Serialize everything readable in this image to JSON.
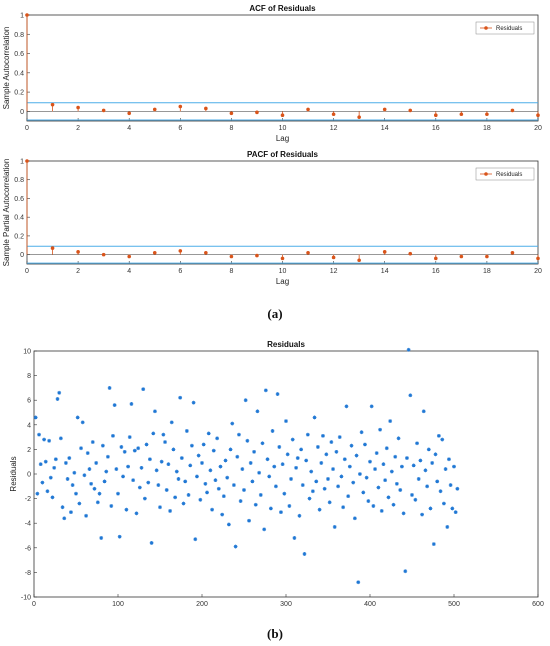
{
  "captions": {
    "a": "(a)",
    "b": "(b)"
  },
  "colors": {
    "stem": "#d9541a",
    "bound": "#4daee8",
    "scatter": "#1f77d4",
    "axis": "#333333"
  },
  "chart_data": [
    {
      "type": "stem",
      "title": "ACF of Residuals",
      "xlabel": "Lag",
      "ylabel": "Sample Autocorrelation",
      "legend": {
        "label": "Residuals",
        "placement": "top-right"
      },
      "xlim": [
        0,
        20
      ],
      "ylim": [
        -0.1,
        1
      ],
      "xticks": [
        0,
        2,
        4,
        6,
        8,
        10,
        12,
        14,
        16,
        18,
        20
      ],
      "yticks": [
        0,
        0.2,
        0.4,
        0.6,
        0.8,
        1
      ],
      "ytick_labels": [
        "0",
        "0.2",
        "0.4",
        "0.6",
        "0.8",
        "1"
      ],
      "confidence_bound": 0.09,
      "lags": [
        0,
        1,
        2,
        3,
        4,
        5,
        6,
        7,
        8,
        9,
        10,
        11,
        12,
        13,
        14,
        15,
        16,
        17,
        18,
        19,
        20
      ],
      "values": [
        1,
        0.07,
        0.04,
        0.01,
        -0.02,
        0.02,
        0.05,
        0.03,
        -0.02,
        -0.01,
        -0.04,
        0.02,
        -0.03,
        -0.06,
        0.02,
        0.01,
        -0.04,
        -0.03,
        -0.03,
        0.01,
        -0.04
      ]
    },
    {
      "type": "stem",
      "title": "PACF of Residuals",
      "xlabel": "Lag",
      "ylabel": "Sample Partial Autocorrelation",
      "legend": {
        "label": "Residuals",
        "placement": "top-right"
      },
      "xlim": [
        0,
        20
      ],
      "ylim": [
        -0.1,
        1
      ],
      "xticks": [
        0,
        2,
        4,
        6,
        8,
        10,
        12,
        14,
        16,
        18,
        20
      ],
      "yticks": [
        0,
        0.2,
        0.4,
        0.6,
        0.8,
        1
      ],
      "ytick_labels": [
        "0",
        "0.2",
        "0.4",
        "0.6",
        "0.8",
        "1"
      ],
      "confidence_bound": 0.09,
      "lags": [
        0,
        1,
        2,
        3,
        4,
        5,
        6,
        7,
        8,
        9,
        10,
        11,
        12,
        13,
        14,
        15,
        16,
        17,
        18,
        19,
        20
      ],
      "values": [
        1,
        0.07,
        0.03,
        0.0,
        -0.02,
        0.02,
        0.04,
        0.02,
        -0.02,
        -0.01,
        -0.04,
        0.02,
        -0.03,
        -0.06,
        0.03,
        0.01,
        -0.04,
        -0.02,
        -0.02,
        0.02,
        -0.04
      ]
    },
    {
      "type": "scatter",
      "title": "Residuals",
      "xlabel": "",
      "ylabel": "Residuals",
      "xlim": [
        0,
        600
      ],
      "ylim": [
        -10,
        10
      ],
      "xticks": [
        0,
        100,
        200,
        300,
        400,
        500,
        600
      ],
      "yticks": [
        -10,
        -8,
        -6,
        -4,
        -2,
        0,
        2,
        4,
        6,
        8,
        10
      ],
      "marker": "star",
      "points": [
        [
          2,
          4.6
        ],
        [
          4,
          -1.6
        ],
        [
          6,
          3.2
        ],
        [
          8,
          0.8
        ],
        [
          10,
          -0.7
        ],
        [
          12,
          2.8
        ],
        [
          14,
          1.0
        ],
        [
          16,
          -1.4
        ],
        [
          18,
          2.7
        ],
        [
          20,
          -0.3
        ],
        [
          22,
          -1.9
        ],
        [
          24,
          0.5
        ],
        [
          26,
          1.2
        ],
        [
          28,
          6.1
        ],
        [
          30,
          6.6
        ],
        [
          32,
          2.9
        ],
        [
          34,
          -2.7
        ],
        [
          36,
          -3.6
        ],
        [
          38,
          0.9
        ],
        [
          40,
          -0.4
        ],
        [
          42,
          1.3
        ],
        [
          44,
          -3.1
        ],
        [
          46,
          -0.9
        ],
        [
          48,
          0.1
        ],
        [
          50,
          -1.6
        ],
        [
          52,
          4.6
        ],
        [
          54,
          -2.4
        ],
        [
          56,
          2.1
        ],
        [
          58,
          4.2
        ],
        [
          60,
          -0.1
        ],
        [
          62,
          -3.4
        ],
        [
          64,
          1.7
        ],
        [
          66,
          0.4
        ],
        [
          68,
          -0.8
        ],
        [
          70,
          2.6
        ],
        [
          72,
          -1.2
        ],
        [
          74,
          0.9
        ],
        [
          76,
          -2.3
        ],
        [
          78,
          -1.6
        ],
        [
          80,
          -5.2
        ],
        [
          82,
          2.3
        ],
        [
          84,
          -0.6
        ],
        [
          86,
          0.2
        ],
        [
          88,
          1.4
        ],
        [
          90,
          7.0
        ],
        [
          92,
          -2.6
        ],
        [
          94,
          3.1
        ],
        [
          96,
          5.6
        ],
        [
          98,
          0.4
        ],
        [
          100,
          -1.6
        ],
        [
          102,
          -5.1
        ],
        [
          104,
          2.2
        ],
        [
          106,
          -0.2
        ],
        [
          108,
          1.8
        ],
        [
          110,
          -2.9
        ],
        [
          112,
          0.6
        ],
        [
          114,
          3.0
        ],
        [
          116,
          5.7
        ],
        [
          118,
          -0.5
        ],
        [
          120,
          1.9
        ],
        [
          122,
          -3.2
        ],
        [
          124,
          2.1
        ],
        [
          126,
          -1.1
        ],
        [
          128,
          0.5
        ],
        [
          130,
          6.9
        ],
        [
          132,
          -2.0
        ],
        [
          134,
          2.4
        ],
        [
          136,
          -0.7
        ],
        [
          138,
          1.2
        ],
        [
          140,
          -5.6
        ],
        [
          142,
          3.3
        ],
        [
          144,
          5.1
        ],
        [
          146,
          0.3
        ],
        [
          148,
          -0.9
        ],
        [
          150,
          -2.7
        ],
        [
          152,
          1.0
        ],
        [
          154,
          3.2
        ],
        [
          156,
          2.6
        ],
        [
          158,
          -1.3
        ],
        [
          160,
          0.8
        ],
        [
          162,
          -3.0
        ],
        [
          164,
          4.2
        ],
        [
          166,
          2.0
        ],
        [
          168,
          -1.9
        ],
        [
          170,
          0.2
        ],
        [
          172,
          -0.4
        ],
        [
          174,
          6.2
        ],
        [
          176,
          1.3
        ],
        [
          178,
          -2.4
        ],
        [
          180,
          -0.6
        ],
        [
          182,
          3.5
        ],
        [
          184,
          -1.7
        ],
        [
          186,
          0.7
        ],
        [
          188,
          2.3
        ],
        [
          190,
          5.8
        ],
        [
          192,
          -5.3
        ],
        [
          194,
          -0.2
        ],
        [
          196,
          1.5
        ],
        [
          198,
          -2.1
        ],
        [
          200,
          0.9
        ],
        [
          202,
          2.4
        ],
        [
          204,
          -0.8
        ],
        [
          206,
          -1.5
        ],
        [
          208,
          3.3
        ],
        [
          210,
          0.3
        ],
        [
          212,
          -2.9
        ],
        [
          214,
          1.9
        ],
        [
          216,
          -0.5
        ],
        [
          218,
          2.9
        ],
        [
          220,
          -1.2
        ],
        [
          222,
          0.6
        ],
        [
          224,
          -3.3
        ],
        [
          226,
          -1.8
        ],
        [
          228,
          1.1
        ],
        [
          230,
          -0.3
        ],
        [
          232,
          -4.1
        ],
        [
          234,
          2.0
        ],
        [
          236,
          4.1
        ],
        [
          238,
          -0.9
        ],
        [
          240,
          -5.9
        ],
        [
          242,
          1.4
        ],
        [
          244,
          3.2
        ],
        [
          246,
          -2.2
        ],
        [
          248,
          0.4
        ],
        [
          250,
          -1.3
        ],
        [
          252,
          6.0
        ],
        [
          254,
          2.7
        ],
        [
          256,
          -3.8
        ],
        [
          258,
          0.9
        ],
        [
          260,
          -0.6
        ],
        [
          262,
          1.8
        ],
        [
          264,
          -2.5
        ],
        [
          266,
          5.1
        ],
        [
          268,
          0.1
        ],
        [
          270,
          -1.7
        ],
        [
          272,
          2.5
        ],
        [
          274,
          -4.5
        ],
        [
          276,
          6.8
        ],
        [
          278,
          1.2
        ],
        [
          280,
          -0.2
        ],
        [
          282,
          -2.8
        ],
        [
          284,
          3.5
        ],
        [
          286,
          0.6
        ],
        [
          288,
          -1.0
        ],
        [
          290,
          6.5
        ],
        [
          292,
          2.2
        ],
        [
          294,
          -3.1
        ],
        [
          296,
          0.8
        ],
        [
          298,
          -1.6
        ],
        [
          300,
          4.3
        ],
        [
          302,
          1.6
        ],
        [
          304,
          -2.6
        ],
        [
          306,
          -0.4
        ],
        [
          308,
          2.8
        ],
        [
          310,
          -5.2
        ],
        [
          312,
          0.5
        ],
        [
          314,
          1.3
        ],
        [
          316,
          -3.4
        ],
        [
          318,
          2.0
        ],
        [
          320,
          -0.9
        ],
        [
          322,
          -6.5
        ],
        [
          324,
          1.1
        ],
        [
          326,
          3.2
        ],
        [
          328,
          -2.0
        ],
        [
          330,
          0.2
        ],
        [
          332,
          -1.4
        ],
        [
          334,
          4.6
        ],
        [
          336,
          -0.6
        ],
        [
          338,
          2.2
        ],
        [
          340,
          -2.9
        ],
        [
          342,
          0.9
        ],
        [
          344,
          3.1
        ],
        [
          346,
          -1.2
        ],
        [
          348,
          1.6
        ],
        [
          350,
          -0.4
        ],
        [
          352,
          -2.3
        ],
        [
          354,
          2.6
        ],
        [
          356,
          0.4
        ],
        [
          358,
          -4.3
        ],
        [
          360,
          1.8
        ],
        [
          362,
          -1.0
        ],
        [
          364,
          3.0
        ],
        [
          366,
          -0.2
        ],
        [
          368,
          -2.7
        ],
        [
          370,
          1.2
        ],
        [
          372,
          5.5
        ],
        [
          374,
          -1.8
        ],
        [
          376,
          0.6
        ],
        [
          378,
          2.3
        ],
        [
          380,
          -0.7
        ],
        [
          382,
          -3.6
        ],
        [
          384,
          1.5
        ],
        [
          386,
          -8.8
        ],
        [
          388,
          0.0
        ],
        [
          390,
          3.4
        ],
        [
          392,
          -1.5
        ],
        [
          394,
          2.4
        ],
        [
          396,
          -0.3
        ],
        [
          398,
          -2.2
        ],
        [
          400,
          1.0
        ],
        [
          402,
          5.5
        ],
        [
          404,
          -2.6
        ],
        [
          406,
          0.4
        ],
        [
          408,
          1.7
        ],
        [
          410,
          -1.1
        ],
        [
          412,
          3.6
        ],
        [
          414,
          -3.0
        ],
        [
          416,
          0.8
        ],
        [
          418,
          -0.5
        ],
        [
          420,
          2.1
        ],
        [
          422,
          -1.9
        ],
        [
          424,
          4.3
        ],
        [
          426,
          0.2
        ],
        [
          428,
          -2.5
        ],
        [
          430,
          1.4
        ],
        [
          432,
          -0.8
        ],
        [
          434,
          2.9
        ],
        [
          436,
          -1.3
        ],
        [
          438,
          0.6
        ],
        [
          440,
          -3.2
        ],
        [
          442,
          -7.9
        ],
        [
          444,
          1.3
        ],
        [
          446,
          10.1
        ],
        [
          448,
          6.4
        ],
        [
          450,
          -1.7
        ],
        [
          452,
          0.7
        ],
        [
          454,
          -2.1
        ],
        [
          456,
          2.5
        ],
        [
          458,
          -0.4
        ],
        [
          460,
          1.1
        ],
        [
          462,
          -3.3
        ],
        [
          464,
          5.1
        ],
        [
          466,
          0.3
        ],
        [
          468,
          -1.0
        ],
        [
          470,
          2.0
        ],
        [
          472,
          -2.8
        ],
        [
          474,
          0.9
        ],
        [
          476,
          -5.7
        ],
        [
          478,
          1.6
        ],
        [
          480,
          -0.6
        ],
        [
          482,
          3.1
        ],
        [
          484,
          -1.4
        ],
        [
          486,
          2.8
        ],
        [
          488,
          -2.4
        ],
        [
          490,
          0.4
        ],
        [
          492,
          -4.3
        ],
        [
          494,
          1.2
        ],
        [
          496,
          -0.9
        ],
        [
          498,
          -2.8
        ],
        [
          500,
          0.6
        ],
        [
          502,
          -3.1
        ],
        [
          504,
          -1.2
        ]
      ]
    }
  ]
}
